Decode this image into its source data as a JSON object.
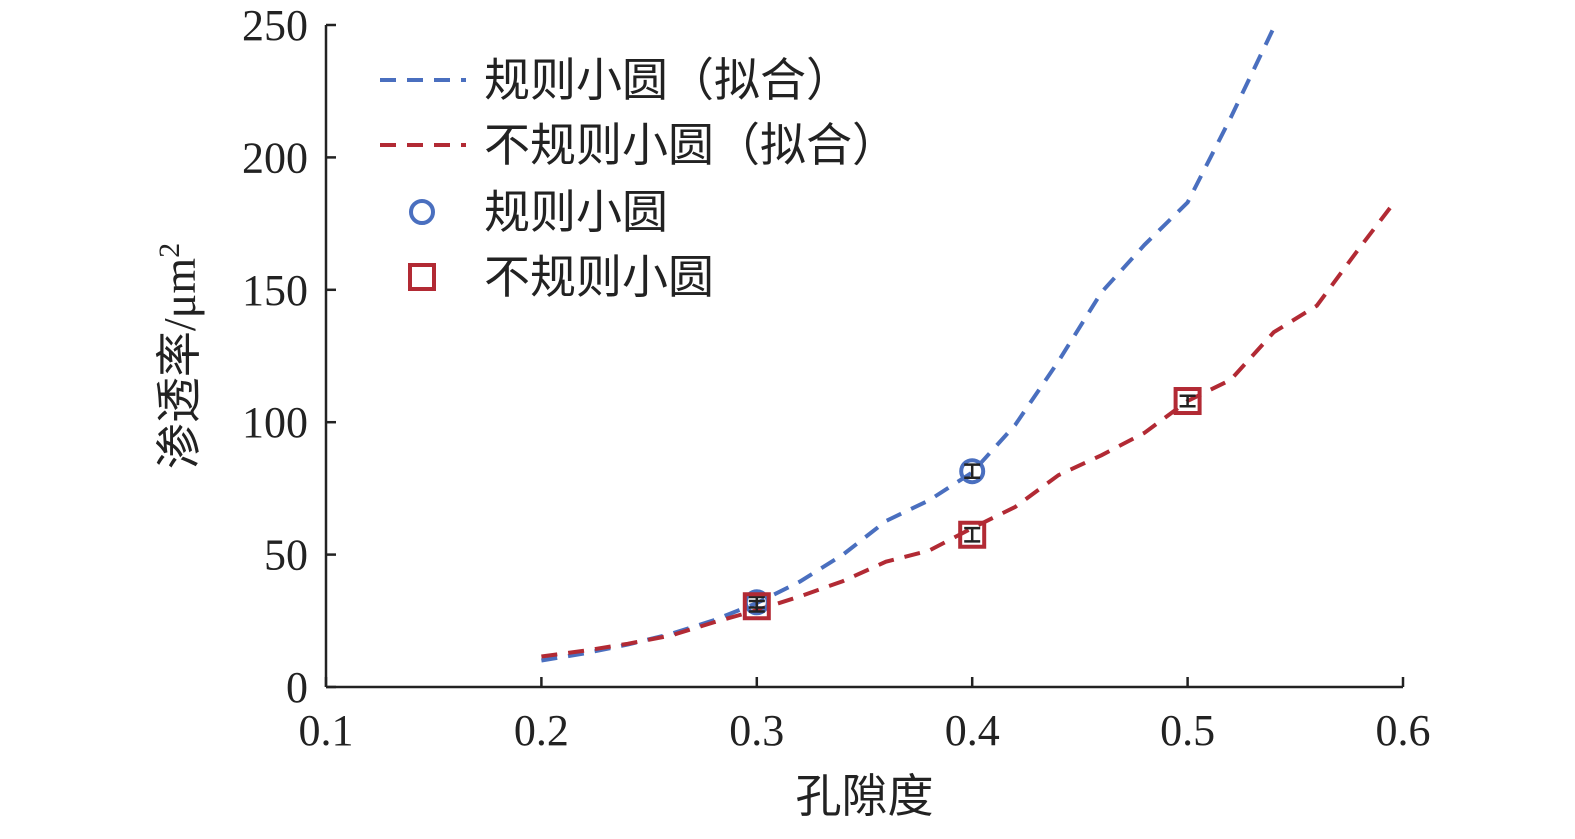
{
  "chart_data": {
    "type": "scatter",
    "xlabel": "孔隙度",
    "ylabel": "渗透率/μm",
    "ylabel_sup": "2",
    "xlim": [
      0.1,
      0.6
    ],
    "ylim": [
      0,
      250
    ],
    "xticks": [
      "0.1",
      "0.2",
      "0.3",
      "0.4",
      "0.5",
      "0.6"
    ],
    "yticks": [
      "0",
      "50",
      "100",
      "150",
      "200",
      "250"
    ],
    "grid": false,
    "legend_position": "top-left",
    "series": [
      {
        "name": "规则小圆（拟合）",
        "kind": "fit-line",
        "color": "#4a6fbf",
        "x": [
          0.2,
          0.22,
          0.24,
          0.26,
          0.28,
          0.3,
          0.32,
          0.34,
          0.36,
          0.38,
          0.4,
          0.42,
          0.44,
          0.46,
          0.48,
          0.5,
          0.52,
          0.54
        ],
        "y": [
          10,
          12.7,
          16,
          20,
          25.2,
          31.7,
          39.8,
          50,
          62.7,
          70.5,
          81,
          99,
          123,
          149,
          167,
          183,
          215,
          249
        ]
      },
      {
        "name": "不规则小圆（拟合）",
        "kind": "fit-line",
        "color": "#b22a34",
        "x": [
          0.2,
          0.22,
          0.24,
          0.26,
          0.28,
          0.3,
          0.32,
          0.34,
          0.36,
          0.38,
          0.4,
          0.42,
          0.44,
          0.46,
          0.48,
          0.5,
          0.52,
          0.54,
          0.56,
          0.58,
          0.595
        ],
        "y": [
          11.5,
          13.7,
          16.3,
          19.4,
          24.4,
          29,
          34.2,
          40,
          47.3,
          51.5,
          60,
          68,
          80,
          87.5,
          96,
          108,
          116,
          134,
          144,
          166,
          182
        ]
      },
      {
        "name": "规则小圆",
        "kind": "points",
        "marker": "circle",
        "color": "#4a6fbf",
        "x": [
          0.3,
          0.4
        ],
        "y": [
          32,
          81.5
        ],
        "err": [
          2,
          2.5
        ]
      },
      {
        "name": "不规则小圆",
        "kind": "points",
        "marker": "square",
        "color": "#b22a34",
        "x": [
          0.3,
          0.4,
          0.5
        ],
        "y": [
          30.5,
          57.5,
          108
        ],
        "err": [
          2,
          2.5,
          2
        ]
      }
    ]
  }
}
